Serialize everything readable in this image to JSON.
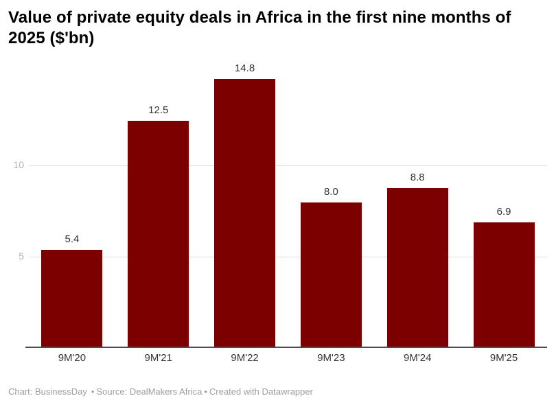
{
  "header": {
    "title": "Value of private equity deals in Africa in the first nine months of 2025 ($'bn)"
  },
  "chart_data": {
    "type": "bar",
    "title": "Value of private equity deals in Africa in the first nine months of 2025 ($'bn)",
    "categories": [
      "9M'20",
      "9M'21",
      "9M'22",
      "9M'23",
      "9M'24",
      "9M'25"
    ],
    "values": [
      5.4,
      12.5,
      14.8,
      8.0,
      8.8,
      6.9
    ],
    "value_labels": [
      "5.4",
      "12.5",
      "14.8",
      "8.0",
      "8.8",
      "6.9"
    ],
    "xlabel": "",
    "ylabel": "",
    "ylim": [
      0,
      15.75
    ],
    "yticks": [
      5,
      10
    ],
    "ytick_labels": [
      "5",
      "10"
    ],
    "grid": "horizontal",
    "legend": "none",
    "bar_color": "#7d0000",
    "value_label_color": "#333333",
    "axis_label_color": "#333333",
    "tick_label_color": "#b3b3b3",
    "gridline_color": "#dedede",
    "baseline_color": "#4d4d4d"
  },
  "footer": {
    "chart_credit": "Chart: BusinessDay",
    "separator": "•",
    "source_credit": "Source: DealMakers Africa",
    "created_credit": "Created with Datawrapper"
  }
}
